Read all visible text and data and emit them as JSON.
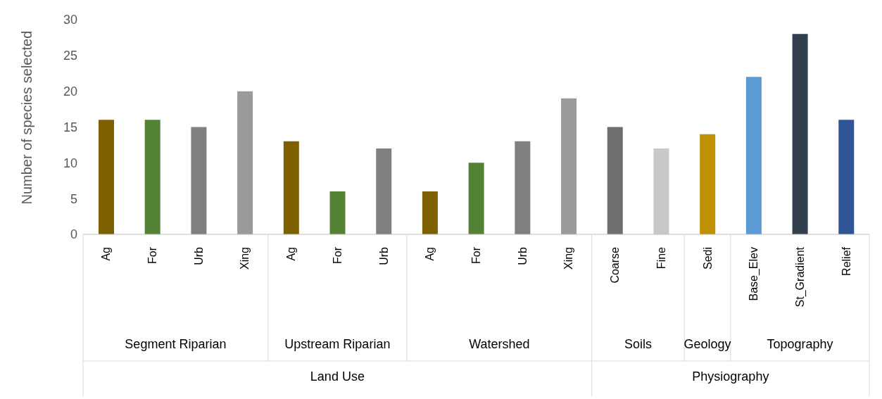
{
  "chart_data": {
    "type": "bar",
    "ylabel": "Number of species selected",
    "categories": [
      "Ag",
      "For",
      "Urb",
      "Xing",
      "Ag",
      "For",
      "Urb",
      "Ag",
      "For",
      "Urb",
      "Xing",
      "Coarse",
      "Fine",
      "Sedi",
      "Base_Elev",
      "St_Gradient",
      "Relief"
    ],
    "values": [
      16,
      16,
      15,
      20,
      13,
      6,
      12,
      6,
      10,
      13,
      19,
      15,
      12,
      14,
      22,
      28,
      16
    ],
    "colors": [
      "#7f6000",
      "#548235",
      "#808080",
      "#9a9a9a",
      "#7f6000",
      "#548235",
      "#808080",
      "#7f6000",
      "#548235",
      "#808080",
      "#9a9a9a",
      "#6e6e6e",
      "#c8c8c8",
      "#bf9000",
      "#5b9bd5",
      "#323f4f",
      "#2f5597"
    ],
    "ylim": [
      0,
      30
    ],
    "yticks": [
      0,
      5,
      10,
      15,
      20,
      25,
      30
    ],
    "grid": false,
    "annotations": [
      "Segment Riparian",
      "Upstream Riparian",
      "Watershed",
      "Soils",
      "Geology",
      "Topography",
      "Land Use",
      "Physiography"
    ]
  }
}
